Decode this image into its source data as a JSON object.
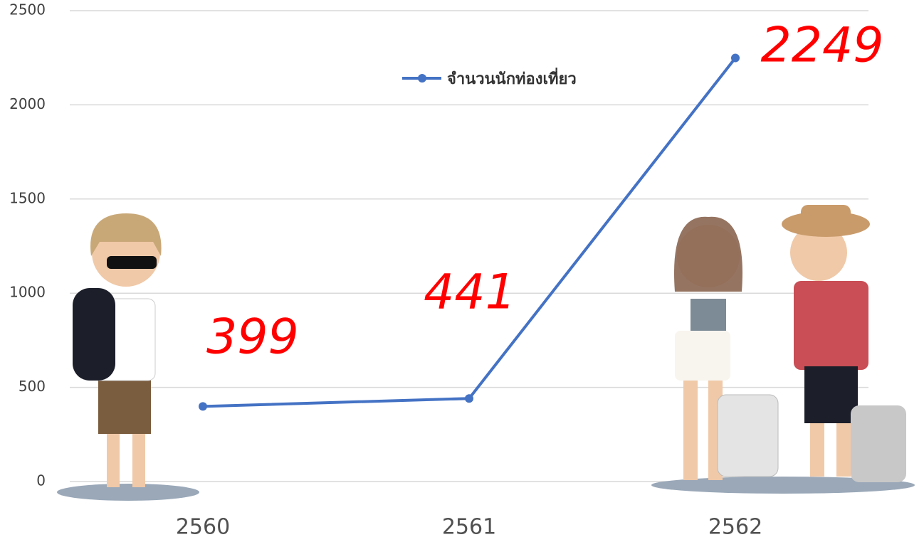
{
  "chart_data": {
    "type": "line",
    "categories": [
      "2560",
      "2561",
      "2562"
    ],
    "series": [
      {
        "name": "จำนวนนักท่องเที่ยว",
        "color": "#4472c4",
        "values": [
          399,
          441,
          2249
        ]
      }
    ],
    "ylim": [
      0,
      2500
    ],
    "yticks": [
      0,
      500,
      1000,
      1500,
      2000,
      2500
    ],
    "grid": true
  }
}
